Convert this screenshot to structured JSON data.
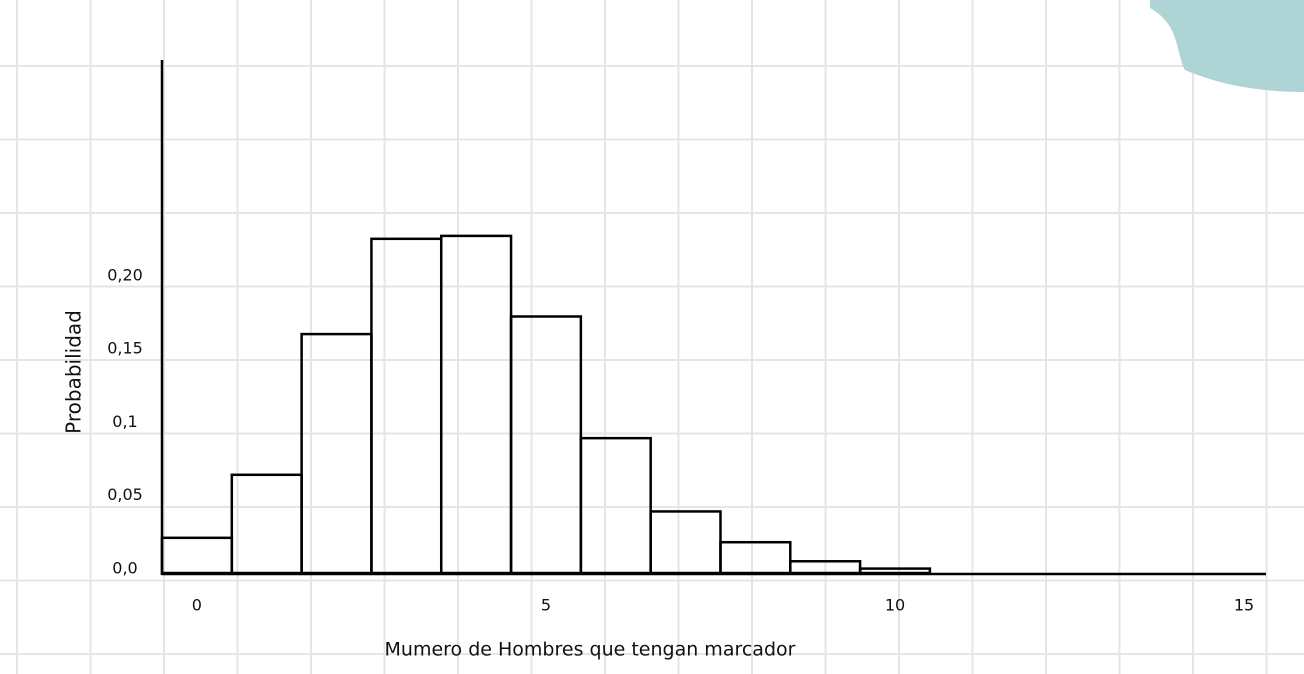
{
  "chart_data": {
    "type": "histogram",
    "xlabel": "Mumero de Hombres que tengan marcador",
    "ylabel": "Probabilidad",
    "bins": [
      -0.5,
      0.5,
      1.5,
      2.5,
      3.5,
      4.5,
      5.5,
      6.5,
      7.5,
      8.5,
      9.5,
      10.5
    ],
    "values": [
      0.024,
      0.067,
      0.163,
      0.228,
      0.23,
      0.175,
      0.092,
      0.042,
      0.021,
      0.008,
      0.003
    ],
    "xlim": [
      -0.5,
      15.3
    ],
    "xticks": [
      0,
      5,
      10,
      15
    ],
    "ylim": [
      0,
      0.35
    ],
    "yticks": [
      {
        "value": 0,
        "label": "0,0"
      },
      {
        "value": 0.05,
        "label": "0,05"
      },
      {
        "value": 0.1,
        "label": "0,1"
      },
      {
        "value": 0.15,
        "label": "0,15"
      },
      {
        "value": 0.2,
        "label": "0,20"
      }
    ],
    "color": "#000000"
  }
}
